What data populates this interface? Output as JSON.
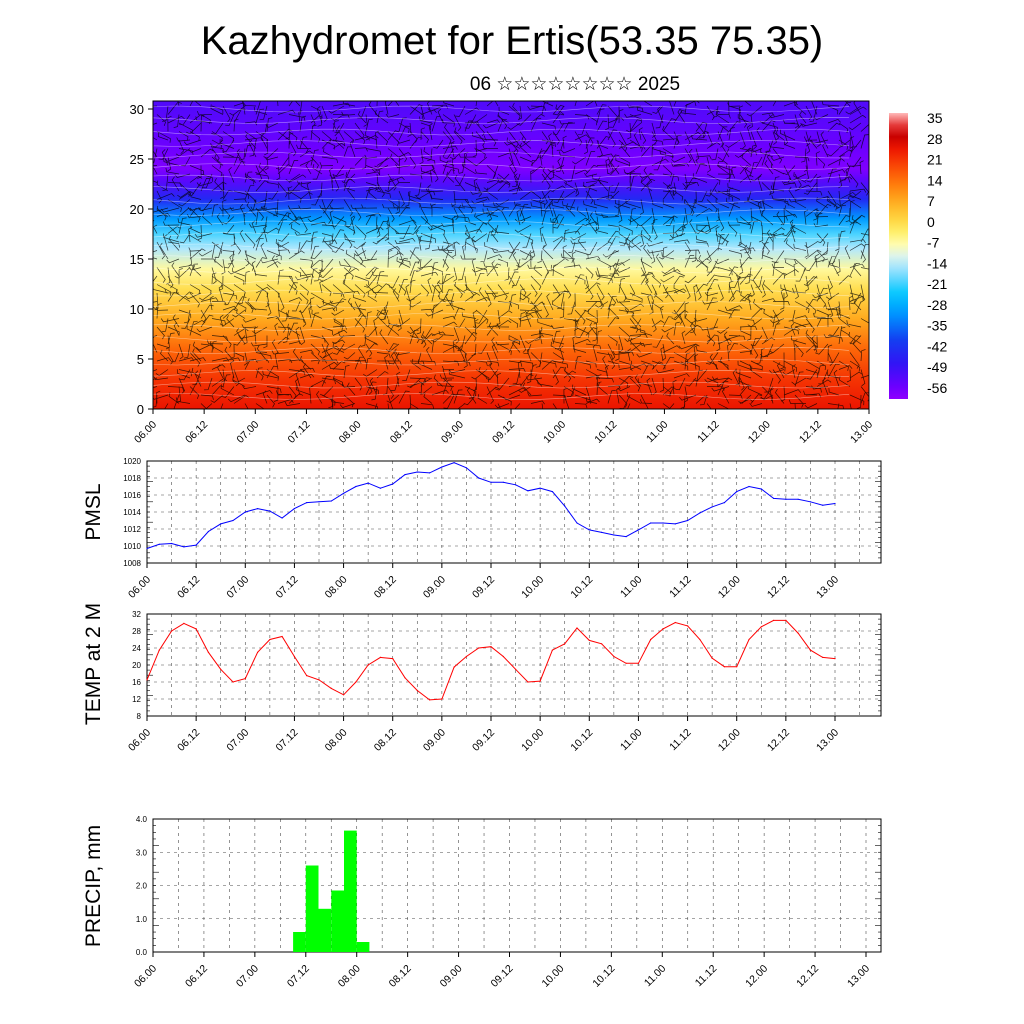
{
  "header": {
    "title": "Kazhydromet for Ertis(53.35 75.35)",
    "subtitle": "06 ☆☆☆☆☆☆☆☆ 2025"
  },
  "colors": {
    "pmsl_line": "#0000ff",
    "temp_line": "#ff0000",
    "precip_bar": "#00ff00",
    "wind_barb": "#000000",
    "grid": "#000000"
  },
  "chart_data": [
    {
      "type": "heatmap",
      "title": "Kazhydromet for Ertis(53.35 75.35)",
      "subtitle": "06 ☆☆☆☆☆☆☆☆ 2025",
      "xlabel": "",
      "ylabel": "",
      "x_ticks": [
        "06.00",
        "06.12",
        "07.00",
        "07.12",
        "08.00",
        "08.12",
        "09.00",
        "09.12",
        "10.00",
        "10.12",
        "11.00",
        "11.12",
        "12.00",
        "12.12",
        "13.00"
      ],
      "y_ticks": [
        0,
        5,
        10,
        15,
        20,
        25,
        30
      ],
      "ylim": [
        0,
        30.8
      ],
      "colorbar_labels": [
        35,
        28,
        21,
        14,
        7,
        0,
        -7,
        -14,
        -21,
        -28,
        -35,
        -42,
        -49,
        -56
      ],
      "colorbar_range": [
        -60,
        38
      ],
      "temperature_profile": [
        {
          "height": 0,
          "value": 26
        },
        {
          "height": 3,
          "value": 22
        },
        {
          "height": 6,
          "value": 16
        },
        {
          "height": 9,
          "value": 8
        },
        {
          "height": 12,
          "value": 0
        },
        {
          "height": 14,
          "value": -6
        },
        {
          "height": 16,
          "value": -14
        },
        {
          "height": 17.5,
          "value": -20
        },
        {
          "height": 19,
          "value": -30
        },
        {
          "height": 21,
          "value": -44
        },
        {
          "height": 23,
          "value": -54
        },
        {
          "height": 24,
          "value": -58
        },
        {
          "height": 26,
          "value": -56
        },
        {
          "height": 28,
          "value": -54
        },
        {
          "height": 30.8,
          "value": -52
        }
      ],
      "overlay": "wind barbs and isotherm contours"
    },
    {
      "type": "line",
      "name": "pmsl",
      "ylabel": "PMSL",
      "xlabel": "",
      "x_ticks": [
        "06.00",
        "06.12",
        "07.00",
        "07.12",
        "08.00",
        "08.12",
        "09.00",
        "09.12",
        "10.00",
        "10.12",
        "11.00",
        "11.12",
        "12.00",
        "12.12",
        "13.00"
      ],
      "ylim": [
        1008,
        1020
      ],
      "y_ticks": [
        1008,
        1010,
        1012,
        1014,
        1016,
        1018,
        1020
      ],
      "x": [
        0,
        3,
        6,
        9,
        12,
        15,
        18,
        21,
        24,
        27,
        30,
        33,
        36,
        39,
        42,
        45,
        48,
        51,
        54,
        57,
        60,
        63,
        66,
        69,
        72,
        75,
        78,
        81,
        84,
        87,
        90,
        93,
        96,
        99,
        102,
        105,
        108,
        111,
        114,
        117,
        120,
        123,
        126,
        129,
        132,
        135,
        138,
        141,
        144,
        147,
        150,
        153,
        156,
        159,
        162,
        165,
        168
      ],
      "values": [
        1009.7,
        1010.2,
        1010.3,
        1009.9,
        1010.1,
        1011.7,
        1012.6,
        1013.0,
        1014.0,
        1014.4,
        1014.1,
        1013.3,
        1014.4,
        1015.1,
        1015.2,
        1015.3,
        1016.2,
        1017.0,
        1017.4,
        1016.8,
        1017.3,
        1018.4,
        1018.7,
        1018.6,
        1019.3,
        1019.8,
        1019.2,
        1018.0,
        1017.5,
        1017.5,
        1017.2,
        1016.5,
        1016.8,
        1016.4,
        1014.7,
        1012.7,
        1011.9,
        1011.6,
        1011.3,
        1011.1,
        1011.9,
        1012.7,
        1012.7,
        1012.6,
        1013.0,
        1013.9,
        1014.6,
        1015.1,
        1016.4,
        1017.0,
        1016.7,
        1015.6,
        1015.5,
        1015.5,
        1015.2,
        1014.8,
        1015.0
      ]
    },
    {
      "type": "line",
      "name": "temp2m",
      "ylabel": "TEMP at 2 M",
      "xlabel": "",
      "x_ticks": [
        "06.00",
        "06.12",
        "07.00",
        "07.12",
        "08.00",
        "08.12",
        "09.00",
        "09.12",
        "10.00",
        "10.12",
        "11.00",
        "11.12",
        "12.00",
        "12.12",
        "13.00"
      ],
      "ylim": [
        8,
        32
      ],
      "y_ticks": [
        8,
        12,
        16,
        20,
        24,
        28,
        32
      ],
      "x": [
        0,
        3,
        6,
        9,
        12,
        15,
        18,
        21,
        24,
        27,
        30,
        33,
        36,
        39,
        42,
        45,
        48,
        51,
        54,
        57,
        60,
        63,
        66,
        69,
        72,
        75,
        78,
        81,
        84,
        87,
        90,
        93,
        96,
        99,
        102,
        105,
        108,
        111,
        114,
        117,
        120,
        123,
        126,
        129,
        132,
        135,
        138,
        141,
        144,
        147,
        150,
        153,
        156,
        159,
        162,
        165,
        168
      ],
      "values": [
        16.5,
        23.5,
        28.0,
        29.8,
        28.5,
        23.0,
        19.0,
        16.0,
        16.8,
        23.0,
        26.0,
        26.7,
        22.0,
        17.5,
        16.5,
        14.5,
        13.0,
        16.0,
        20.0,
        21.8,
        21.5,
        17.0,
        14.0,
        11.8,
        12.0,
        19.5,
        22.0,
        24.0,
        24.3,
        22.0,
        19.0,
        16.0,
        16.2,
        23.5,
        25.0,
        28.7,
        25.8,
        25.0,
        22.0,
        20.4,
        20.4,
        26.0,
        28.5,
        30.0,
        29.2,
        26.0,
        21.6,
        19.6,
        19.6,
        26.0,
        29.0,
        30.5,
        30.5,
        27.5,
        23.5,
        21.8,
        21.5
      ]
    },
    {
      "type": "bar",
      "name": "precip",
      "ylabel": "PRECIP, mm",
      "xlabel": "",
      "x_ticks": [
        "06.00",
        "06.12",
        "07.00",
        "07.12",
        "08.00",
        "08.12",
        "09.00",
        "09.12",
        "10.00",
        "10.12",
        "11.00",
        "11.12",
        "12.00",
        "12.12",
        "13.00"
      ],
      "ylim": [
        0,
        4
      ],
      "y_ticks": [
        "0.0",
        "1.0",
        "2.0",
        "3.0",
        "4.0"
      ],
      "bars": [
        {
          "start": 33,
          "end": 36,
          "value": 0.6
        },
        {
          "start": 36,
          "end": 39,
          "value": 2.6
        },
        {
          "start": 39,
          "end": 42,
          "value": 1.3
        },
        {
          "start": 42,
          "end": 45,
          "value": 1.85
        },
        {
          "start": 45,
          "end": 48,
          "value": 3.65
        },
        {
          "start": 48,
          "end": 51,
          "value": 0.3
        }
      ]
    }
  ]
}
